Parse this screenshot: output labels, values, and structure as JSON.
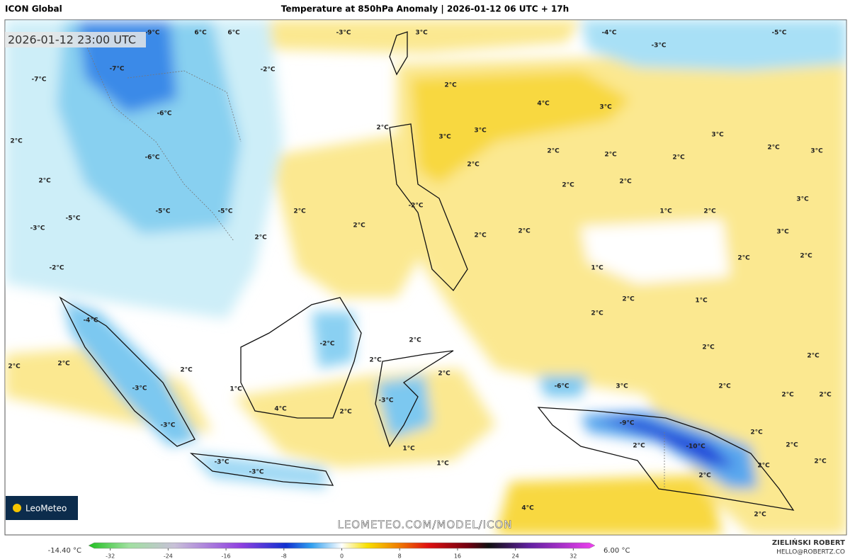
{
  "header": {
    "model": "ICON Global",
    "title": "Temperature at 850hPa Anomaly | 2026-01-12 06 UTC + 17h"
  },
  "map": {
    "valid_time": "2026-01-12 23:00 UTC",
    "watermark": "LEOMETEO.COM/MODEL/ICON",
    "logo": "LeoMeteo",
    "labels": [
      "-9°C",
      "6°C",
      "6°C",
      "-3°C",
      "3°C",
      "-4°C",
      "-5°C",
      "-3°C",
      "-7°C",
      "-7°C",
      "-2°C",
      "2°C",
      "4°C",
      "3°C",
      "-6°C",
      "2°C",
      "3°C",
      "3°C",
      "3°C",
      "2°C",
      "-6°C",
      "2°C",
      "2°C",
      "2°C",
      "2°C",
      "2°C",
      "3°C",
      "2°C",
      "2°C",
      "2°C",
      "3°C",
      "2°C",
      "1°C",
      "2°C",
      "-2°C",
      "-5°C",
      "-5°C",
      "2°C",
      "-5°C",
      "-3°C",
      "2°C",
      "2°C",
      "2°C",
      "3°C",
      "2°C",
      "2°C",
      "1°C",
      "-2°C",
      "2°C",
      "1°C",
      "2°C",
      "-4°C",
      "-2°C",
      "2°C",
      "2°C",
      "2°C",
      "2°C",
      "2°C",
      "2°C",
      "2°C",
      "2°C",
      "-3°C",
      "1°C",
      "-6°C",
      "3°C",
      "2°C",
      "2°C",
      "2°C",
      "-3°C",
      "4°C",
      "2°C",
      "-9°C",
      "2°C",
      "2°C",
      "-3°C",
      "-10°C",
      "2°C",
      "1°C",
      "-3°C",
      "2°C",
      "2°C",
      "1°C",
      "-3°C",
      "2°C",
      "4°C",
      "2°C"
    ]
  },
  "colorbar": {
    "min_label": "-14.40 °C",
    "max_label": "6.00 °C",
    "lim": [
      -35,
      35
    ],
    "ticks": [
      -32,
      -24,
      -16,
      -8,
      0,
      8,
      16,
      24,
      32
    ]
  },
  "footer": {
    "author": "ZIELIŃSKI ROBERT",
    "email": "HELLO@ROBERTZ.CO"
  }
}
